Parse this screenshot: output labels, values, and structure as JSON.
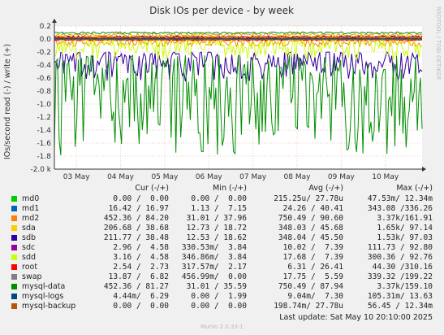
{
  "chart_data": {
    "type": "line",
    "title": "Disk IOs per device - by week",
    "ylabel": "IOs/second read (-) / write (+)",
    "side_label": "RRDTOOL / TOBI OETIKER",
    "ylim": [
      -2000,
      200
    ],
    "yticks": [
      "0.2",
      "0.0",
      "-0.2",
      "-0.4",
      "-0.6",
      "-0.8",
      "-1.0",
      "-1.2",
      "-1.4",
      "-1.6",
      "-1.8",
      "-2.0 k"
    ],
    "xticks": [
      "03 May",
      "04 May",
      "05 May",
      "06 May",
      "07 May",
      "08 May",
      "09 May",
      "10 May"
    ],
    "grid": true,
    "series": [
      {
        "name": "md0",
        "color": "#00cc00",
        "read_range": [
          0,
          0
        ],
        "write_range": [
          0,
          0
        ]
      },
      {
        "name": "md1",
        "color": "#0066b3",
        "read_range": [
          -20,
          -5
        ],
        "write_range": [
          5,
          20
        ]
      },
      {
        "name": "md2",
        "color": "#ff8000",
        "read_range": [
          -120,
          -15
        ],
        "write_range": [
          40,
          90
        ]
      },
      {
        "name": "sda",
        "color": "#ffcc00",
        "read_range": [
          -30,
          -10
        ],
        "write_range": [
          15,
          45
        ]
      },
      {
        "name": "sdb",
        "color": "#330099",
        "read_range": [
          -650,
          -200
        ],
        "write_range": [
          20,
          50
        ]
      },
      {
        "name": "sdc",
        "color": "#990099",
        "read_range": [
          -20,
          -5
        ],
        "write_range": [
          5,
          10
        ]
      },
      {
        "name": "sdd",
        "color": "#ccff00",
        "read_range": [
          -320,
          -5
        ],
        "write_range": [
          5,
          60
        ]
      },
      {
        "name": "root",
        "color": "#ff0000",
        "read_range": [
          -30,
          -2
        ],
        "write_range": [
          15,
          40
        ]
      },
      {
        "name": "swap",
        "color": "#808080",
        "read_range": [
          -20,
          0
        ],
        "write_range": [
          3,
          10
        ]
      },
      {
        "name": "mysql-data",
        "color": "#008f00",
        "read_range": [
          -1800,
          -250
        ],
        "write_range": [
          80,
          110
        ]
      },
      {
        "name": "mysql-logs",
        "color": "#00487d",
        "read_range": [
          -2,
          0
        ],
        "write_range": [
          5,
          12
        ]
      },
      {
        "name": "mysql-backup",
        "color": "#b35a00",
        "read_range": [
          0,
          0
        ],
        "write_range": [
          0,
          0
        ]
      }
    ]
  },
  "legend": {
    "headers": {
      "cur": "Cur (-/+)",
      "min": "Min (-/+)",
      "avg": "Avg (-/+)",
      "max": "Max (-/+)"
    },
    "rows": [
      {
        "name": "md0",
        "color": "#00cc00",
        "cur": "0.00 /  0.00",
        "min": "0.00 /  0.00",
        "avg": "215.25u/ 27.78u",
        "max": "47.53m/ 12.34m"
      },
      {
        "name": "md1",
        "color": "#0066b3",
        "cur": "16.42 / 16.97",
        "min": "1.13 /  7.15",
        "avg": "24.26 / 40.41",
        "max": "343.08 /336.26"
      },
      {
        "name": "md2",
        "color": "#ff8000",
        "cur": "452.36 / 84.20",
        "min": "31.01 / 37.96",
        "avg": "750.49 / 90.60",
        "max": "3.37k/161.91"
      },
      {
        "name": "sda",
        "color": "#ffcc00",
        "cur": "206.68 / 38.68",
        "min": "12.73 / 18.72",
        "avg": "348.03 / 45.68",
        "max": "1.65k/ 97.14"
      },
      {
        "name": "sdb",
        "color": "#330099",
        "cur": "211.77 / 38.48",
        "min": "12.53 / 18.62",
        "avg": "348.04 / 45.50",
        "max": "1.53k/ 97.03"
      },
      {
        "name": "sdc",
        "color": "#990099",
        "cur": "2.96 /  4.58",
        "min": "330.53m/  3.84",
        "avg": "10.02 /  7.39",
        "max": "111.73 / 92.80"
      },
      {
        "name": "sdd",
        "color": "#ccff00",
        "cur": "3.16 /  4.58",
        "min": "346.86m/  3.84",
        "avg": "17.68 /  7.39",
        "max": "300.36 / 92.76"
      },
      {
        "name": "root",
        "color": "#ff0000",
        "cur": "2.54 /  2.73",
        "min": "317.57m/  2.17",
        "avg": "6.31 / 26.41",
        "max": "44.30 /310.16"
      },
      {
        "name": "swap",
        "color": "#808080",
        "cur": "13.87 /  6.82",
        "min": "456.99m/  0.00",
        "avg": "17.75 /  5.59",
        "max": "339.32 /199.22"
      },
      {
        "name": "mysql-data",
        "color": "#008f00",
        "cur": "452.36 / 81.27",
        "min": "31.01 / 35.59",
        "avg": "750.49 / 87.94",
        "max": "3.37k/159.10"
      },
      {
        "name": "mysql-logs",
        "color": "#00487d",
        "cur": "4.44m/  6.29",
        "min": "0.00 /  1.99",
        "avg": "9.04m/  7.30",
        "max": "105.31m/ 13.63"
      },
      {
        "name": "mysql-backup",
        "color": "#b35a00",
        "cur": "0.00 /  0.00",
        "min": "0.00 /  0.00",
        "avg": "198.74m/ 27.78u",
        "max": "56.45 / 12.34m"
      }
    ]
  },
  "last_update": "Last update: Sat May 10 20:10:00 2025",
  "munin_version": "Munin 2.0.33-1"
}
